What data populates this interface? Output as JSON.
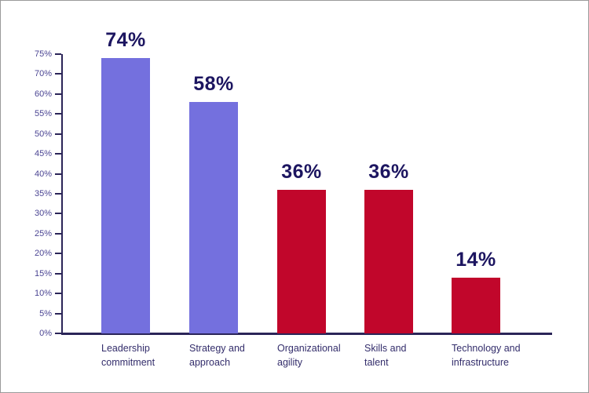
{
  "chart_data": {
    "type": "bar",
    "title": "",
    "xlabel": "",
    "ylabel": "",
    "categories": [
      "Leadership commitment",
      "Strategy and approach",
      "Organizational agility",
      "Skills and talent",
      "Technology and infrastructure"
    ],
    "category_lines": [
      [
        "Leadership",
        "commitment"
      ],
      [
        "Strategy and",
        "approach"
      ],
      [
        "Organizational",
        "agility"
      ],
      [
        "Skills and",
        "talent"
      ],
      [
        "Technology and",
        "infrastructure"
      ]
    ],
    "values": [
      74,
      58,
      36,
      36,
      14
    ],
    "value_labels": [
      "74%",
      "58%",
      "36%",
      "36%",
      "14%"
    ],
    "bar_colors": [
      "#7470DE",
      "#7470DE",
      "#C1062B",
      "#C1062B",
      "#C1062B"
    ],
    "ytick_labels": [
      "0%",
      "5%",
      "10%",
      "15%",
      "20%",
      "25%",
      "30%",
      "35%",
      "40%",
      "45%",
      "50%",
      "55%",
      "60%",
      "70%",
      "75%"
    ],
    "ytick_values": [
      0,
      5,
      10,
      15,
      20,
      25,
      30,
      35,
      40,
      45,
      50,
      55,
      60,
      70,
      75
    ],
    "ylim": [
      0,
      75
    ],
    "grid": false
  },
  "colors": {
    "bar_purple": "#7470DE",
    "bar_red": "#C1062B",
    "value_label": "#1C1560",
    "category_label": "#332D6B",
    "tick_label": "#4B4593",
    "axis": "#2B2558",
    "frame_border": "#9A9A9A",
    "background": "#FFFFFF"
  }
}
